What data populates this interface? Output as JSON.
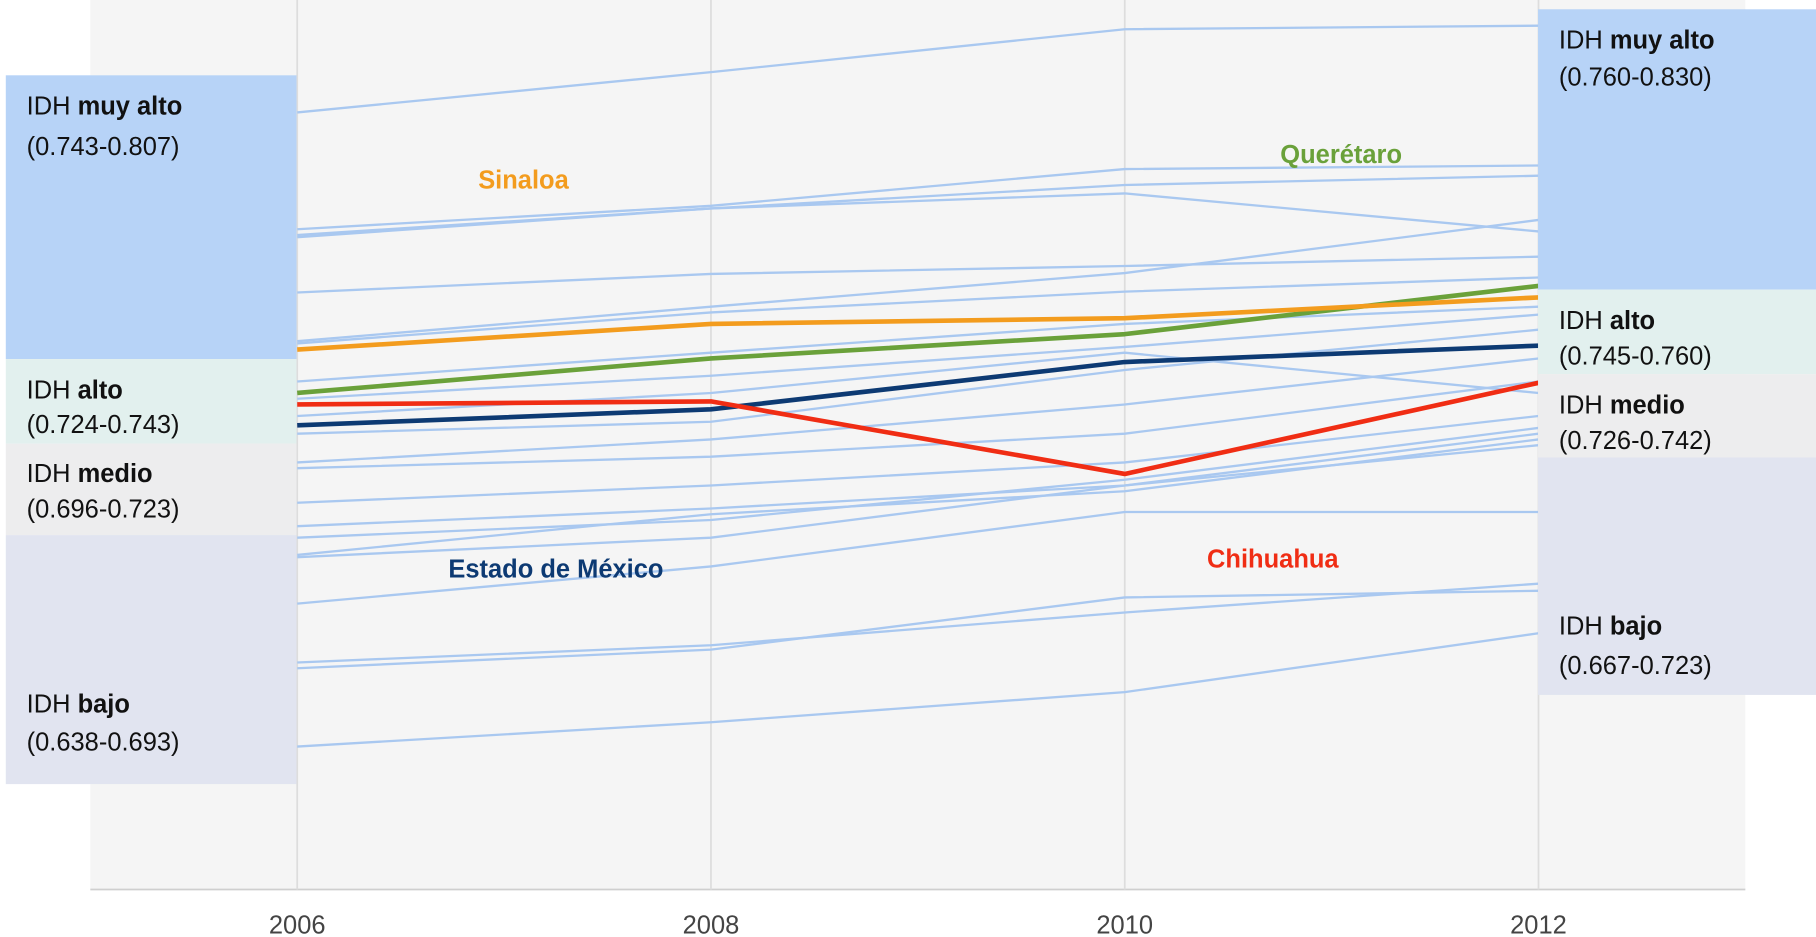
{
  "chart_data": {
    "type": "line",
    "x": [
      2006,
      2008,
      2010,
      2012
    ],
    "xticks": [
      2006,
      2008,
      2010,
      2012
    ],
    "xlim": [
      2005,
      2013
    ],
    "ylim": [
      0.623,
      0.824
    ],
    "grid": true,
    "series": [
      {
        "color": "#a9c8f0",
        "values": [
          0.7986,
          0.8077,
          0.8174,
          0.8182
        ]
      },
      {
        "color": "#a9c8f0",
        "values": [
          0.7722,
          0.7775,
          0.7858,
          0.7866
        ]
      },
      {
        "color": "#a9c8f0",
        "values": [
          0.7709,
          0.7769,
          0.7822,
          0.7843
        ]
      },
      {
        "color": "#a9c8f0",
        "values": [
          0.7704,
          0.7769,
          0.7803,
          0.7717
        ]
      },
      {
        "color": "#a9c8f0",
        "values": [
          0.7579,
          0.7621,
          0.7639,
          0.766
        ]
      },
      {
        "color": "#a9c8f0",
        "values": [
          0.7469,
          0.7547,
          0.7623,
          0.7743
        ]
      },
      {
        "color": "#a9c8f0",
        "values": [
          0.7464,
          0.7534,
          0.7581,
          0.7613
        ]
      },
      {
        "color": "#a9c8f0",
        "values": [
          0.7378,
          0.7443,
          0.7508,
          0.7547
        ]
      },
      {
        "color": "#a9c8f0",
        "values": [
          0.7339,
          0.7391,
          0.7456,
          0.7529
        ]
      },
      {
        "color": "#a9c8f0",
        "values": [
          0.73,
          0.7352,
          0.7443,
          0.7352
        ]
      },
      {
        "color": "#a9c8f0",
        "values": [
          0.726,
          0.7287,
          0.7404,
          0.7495
        ]
      },
      {
        "color": "#a9c8f0",
        "values": [
          0.7195,
          0.7247,
          0.7326,
          0.743
        ]
      },
      {
        "color": "#a9c8f0",
        "values": [
          0.7182,
          0.7208,
          0.726,
          0.7378
        ]
      },
      {
        "color": "#a9c8f0",
        "values": [
          0.7104,
          0.7143,
          0.7195,
          0.73
        ]
      },
      {
        "color": "#a9c8f0",
        "values": [
          0.7051,
          0.7091,
          0.7143,
          0.726
        ]
      },
      {
        "color": "#a9c8f0",
        "values": [
          0.7025,
          0.7065,
          0.7156,
          0.7273
        ]
      },
      {
        "color": "#a9c8f0",
        "values": [
          0.6986,
          0.7078,
          0.713,
          0.7247
        ]
      },
      {
        "color": "#a9c8f0",
        "values": [
          0.6981,
          0.7025,
          0.7143,
          0.7234
        ]
      },
      {
        "color": "#a9c8f0",
        "values": [
          0.6876,
          0.696,
          0.7083,
          0.7083
        ]
      },
      {
        "color": "#a9c8f0",
        "values": [
          0.6743,
          0.6782,
          0.6856,
          0.6921
        ]
      },
      {
        "color": "#a9c8f0",
        "values": [
          0.673,
          0.6772,
          0.689,
          0.6905
        ]
      },
      {
        "color": "#a9c8f0",
        "values": [
          0.6553,
          0.6608,
          0.6676,
          0.6809
        ]
      },
      {
        "name": "Querétaro",
        "color": "#6aa13a",
        "values": [
          0.7352,
          0.743,
          0.7485,
          0.7594
        ]
      },
      {
        "name": "Sinaloa",
        "color": "#f39c1e",
        "values": [
          0.745,
          0.7508,
          0.7521,
          0.7568
        ]
      },
      {
        "name": "Estado de México",
        "color": "#0d3a73",
        "values": [
          0.7279,
          0.7315,
          0.7422,
          0.7459
        ]
      },
      {
        "name": "Chihuahua",
        "color": "#f02d14",
        "values": [
          0.7326,
          0.7333,
          0.7169,
          0.7375
        ]
      }
    ],
    "bands": {
      "left": [
        {
          "prefix": "IDH",
          "level": "muy alto",
          "range": "(0.743-0.807)"
        },
        {
          "prefix": "IDH",
          "level": "alto",
          "range": "(0.724-0.743)"
        },
        {
          "prefix": "IDH",
          "level": "medio",
          "range": "(0.696-0.723)"
        },
        {
          "prefix": "IDH",
          "level": "bajo",
          "range": "(0.638-0.693)"
        }
      ],
      "right": [
        {
          "prefix": "IDH",
          "level": "muy alto",
          "range": "(0.760-0.830)"
        },
        {
          "prefix": "IDH",
          "level": "alto",
          "range": "(0.745-0.760)"
        },
        {
          "prefix": "IDH",
          "level": "medio",
          "range": "(0.726-0.742)"
        },
        {
          "prefix": "IDH",
          "level": "bajo",
          "range": "(0.667-0.723)"
        }
      ]
    }
  }
}
